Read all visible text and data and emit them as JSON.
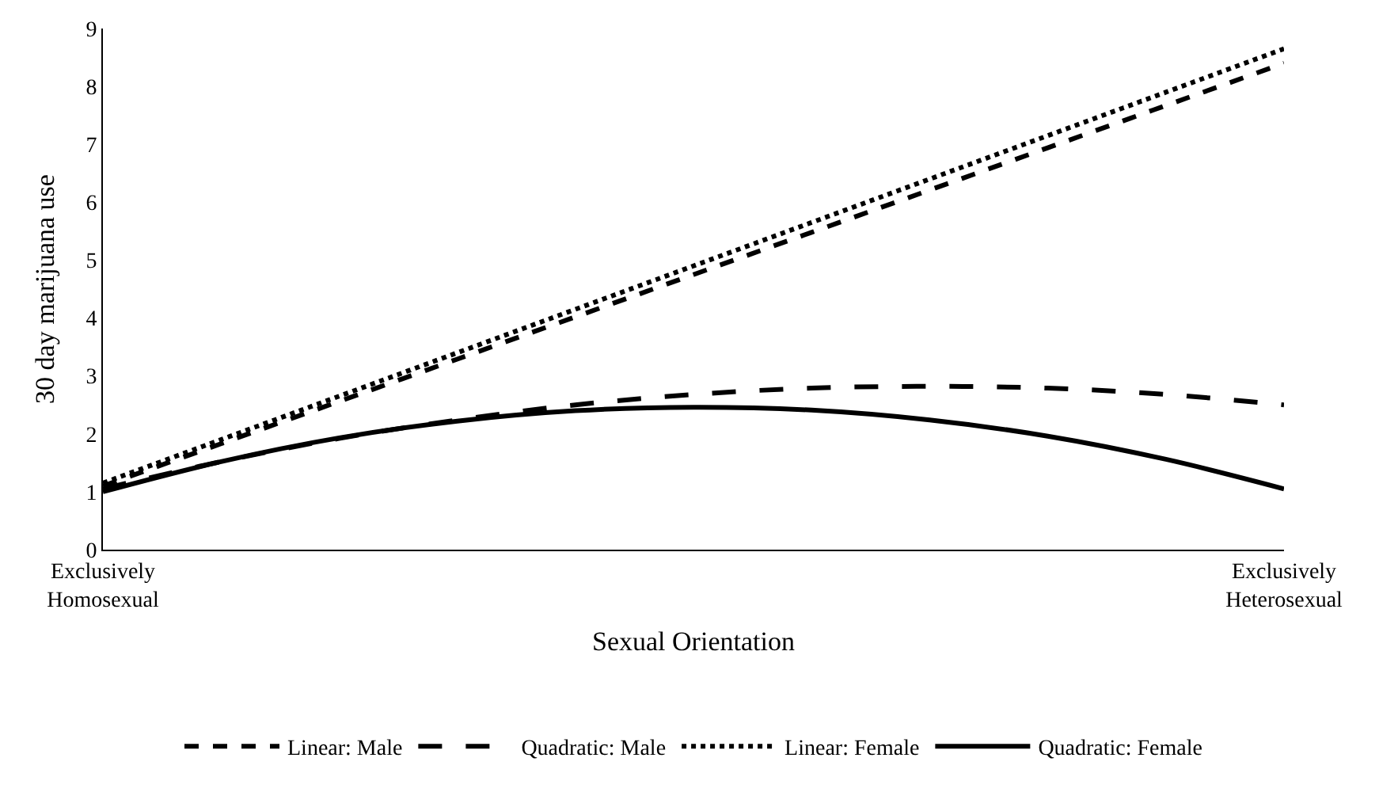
{
  "chart_data": {
    "type": "line",
    "xlabel": "Sexual Orientation",
    "ylabel": "30 day marijuana use",
    "categories": [
      "Exclusively\nHomosexual",
      null,
      null,
      null,
      null,
      null,
      null,
      null,
      null,
      null,
      "Exclusively\nHeterosexual"
    ],
    "ylim": [
      0,
      9
    ],
    "yticks": [
      0,
      1,
      2,
      3,
      4,
      5,
      6,
      7,
      8,
      9
    ],
    "legend": "bottom",
    "marker": "none",
    "series": [
      {
        "name": "Linear: Male",
        "color": "#000000",
        "line_style": "dashed",
        "values": [
          1.1,
          1.83,
          2.56,
          3.29,
          4.02,
          4.75,
          5.48,
          6.21,
          6.94,
          7.67,
          8.4
        ]
      },
      {
        "name": "Quadratic: Male",
        "color": "#000000",
        "line_style": "longdash",
        "values": [
          1.05,
          1.52,
          1.92,
          2.24,
          2.5,
          2.68,
          2.79,
          2.82,
          2.79,
          2.68,
          2.5
        ]
      },
      {
        "name": "Linear: Female",
        "color": "#000000",
        "line_style": "dotted",
        "values": [
          1.15,
          1.9,
          2.65,
          3.4,
          4.15,
          4.9,
          5.65,
          6.4,
          7.15,
          7.9,
          8.65
        ]
      },
      {
        "name": "Quadratic: Female",
        "color": "#000000",
        "line_style": "solid",
        "values": [
          1.0,
          1.52,
          1.93,
          2.22,
          2.4,
          2.46,
          2.41,
          2.24,
          1.96,
          1.56,
          1.05
        ]
      }
    ]
  }
}
